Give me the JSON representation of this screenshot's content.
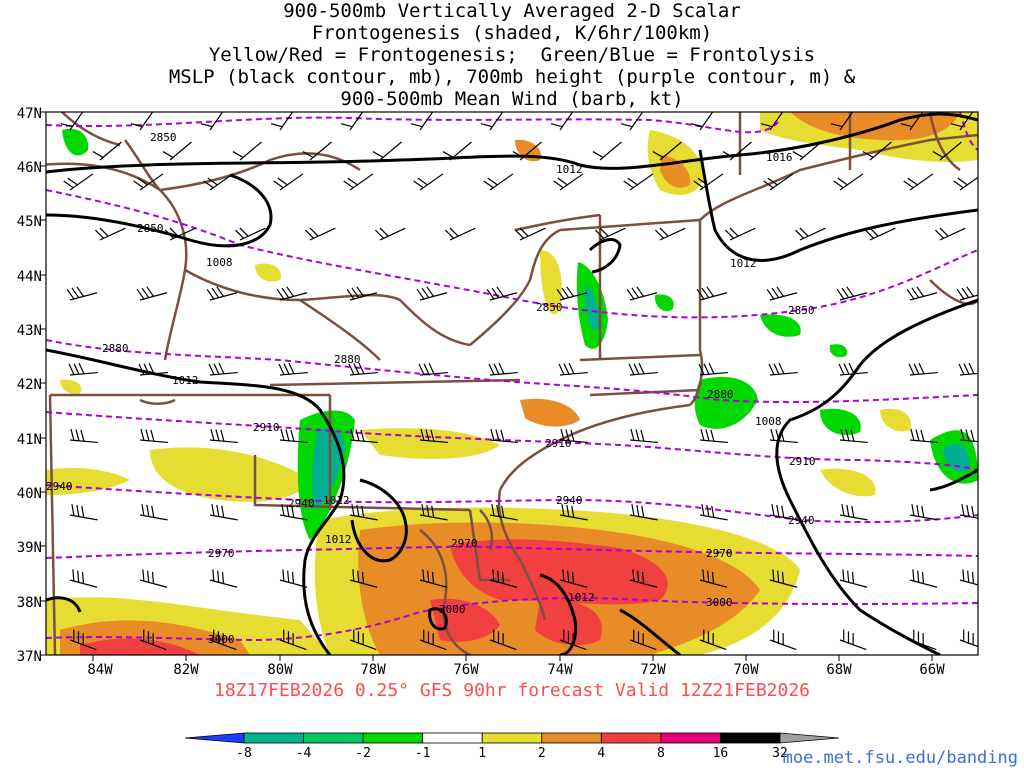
{
  "title_lines": [
    "900-500mb Vertically Averaged 2-D Scalar",
    "Frontogenesis (shaded, K/6hr/100km)",
    "Yellow/Red = Frontogenesis;  Green/Blue = Frontolysis",
    "MSLP (black contour, mb), 700mb height (purple contour, m) &",
    "900-500mb Mean Wind (barb, kt)"
  ],
  "valid_time": "18Z17FEB2026 0.25° GFS 90hr forecast Valid 12Z21FEB2026",
  "credit": "moe.met.fsu.edu/banding",
  "map": {
    "lon_labels": [
      "84W",
      "82W",
      "80W",
      "78W",
      "76W",
      "74W",
      "72W",
      "70W",
      "68W",
      "66W"
    ],
    "lat_labels": [
      "47N",
      "46N",
      "45N",
      "44N",
      "43N",
      "42N",
      "41N",
      "40N",
      "39N",
      "38N",
      "37N"
    ],
    "lon_range": [
      -85,
      -65
    ],
    "lat_range": [
      37,
      47
    ],
    "height_contour_labels": [
      "2850",
      "2850",
      "2850",
      "2850",
      "2880",
      "2880",
      "2880",
      "2910",
      "2910",
      "2910",
      "2940",
      "2940",
      "2940",
      "2940",
      "2970",
      "2970",
      "2970",
      "3000",
      "3000",
      "3000"
    ],
    "mslp_contour_labels": [
      "1012",
      "1016",
      "1008",
      "1012",
      "1012",
      "1008",
      "1012",
      "1012",
      "1012"
    ],
    "colors": {
      "mslp": "#000000",
      "height": "#b000d8",
      "borders": "#7a5040",
      "frontolysis_light": "#00d800",
      "frontolysis_mid": "#00b090",
      "frontogenesis_light": "#e6dc32",
      "frontogenesis_mid": "#e88c28",
      "frontogenesis_strong": "#f04040"
    }
  },
  "colorbar": {
    "labels": [
      "-8",
      "-4",
      "-2",
      "-1",
      "1",
      "2",
      "4",
      "8",
      "16",
      "32"
    ],
    "colors": [
      "#1e3cff",
      "#00b48c",
      "#00c864",
      "#00d800",
      "#ffffff",
      "#e6dc32",
      "#e88c28",
      "#f04040",
      "#e8007a",
      "#000000",
      "#a0a0a0"
    ]
  }
}
